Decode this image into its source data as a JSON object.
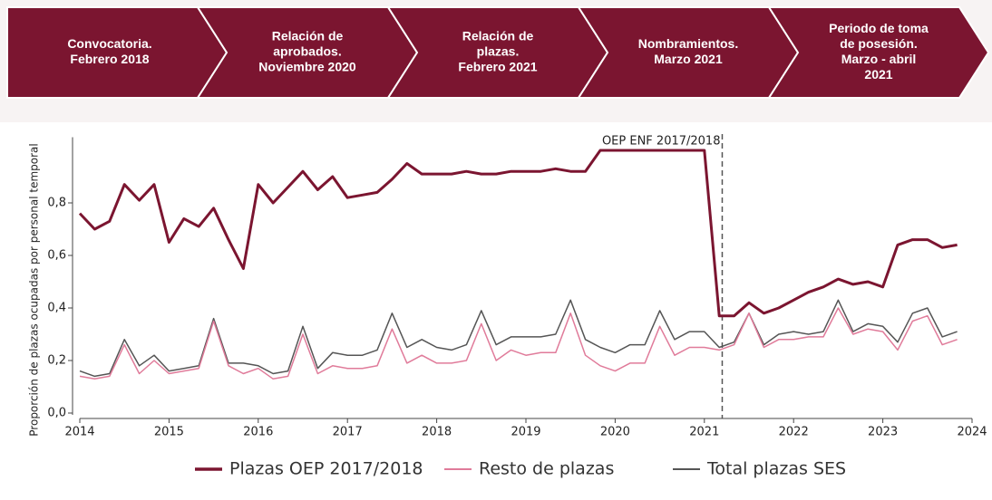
{
  "banner": {
    "steps": [
      [
        "Convocatoria.",
        "Febrero 2018"
      ],
      [
        "Relación de",
        "aprobados.",
        "Noviembre 2020"
      ],
      [
        "Relación de",
        "plazas.",
        "Febrero 2021"
      ],
      [
        "Nombramientos.",
        "Marzo 2021"
      ],
      [
        "Periodo de toma",
        "de posesión.",
        "Marzo - abril",
        "2021"
      ]
    ]
  },
  "chart_data": {
    "type": "line",
    "y_label": "Proporción de plazas ocupadas por personal temporal",
    "annotation": {
      "x": 2021.2,
      "text": "OEP ENF 2017/2018"
    },
    "x": [
      2014,
      2014.167,
      2014.333,
      2014.5,
      2014.667,
      2014.833,
      2015,
      2015.167,
      2015.333,
      2015.5,
      2015.667,
      2015.833,
      2016,
      2016.167,
      2016.333,
      2016.5,
      2016.667,
      2016.833,
      2017,
      2017.167,
      2017.333,
      2017.5,
      2017.667,
      2017.833,
      2018,
      2018.167,
      2018.333,
      2018.5,
      2018.667,
      2018.833,
      2019,
      2019.167,
      2019.333,
      2019.5,
      2019.667,
      2019.833,
      2020,
      2020.167,
      2020.333,
      2020.5,
      2020.667,
      2020.833,
      2021,
      2021.167,
      2021.333,
      2021.5,
      2021.667,
      2021.833,
      2022,
      2022.167,
      2022.333,
      2022.5,
      2022.667,
      2022.833,
      2023,
      2023.167,
      2023.333,
      2023.5,
      2023.667,
      2023.833
    ],
    "series": [
      {
        "name": "Plazas OEP 2017/2018",
        "color": "#7b1530",
        "width": 3,
        "values": [
          0.76,
          0.7,
          0.73,
          0.87,
          0.81,
          0.87,
          0.65,
          0.74,
          0.71,
          0.78,
          0.66,
          0.55,
          0.87,
          0.8,
          0.86,
          0.92,
          0.85,
          0.9,
          0.82,
          0.83,
          0.84,
          0.89,
          0.95,
          0.91,
          0.91,
          0.91,
          0.92,
          0.91,
          0.91,
          0.92,
          0.92,
          0.92,
          0.93,
          0.92,
          0.92,
          1.0,
          1.0,
          1.0,
          1.0,
          1.0,
          1.0,
          1.0,
          1.0,
          0.37,
          0.37,
          0.42,
          0.38,
          0.4,
          0.43,
          0.46,
          0.48,
          0.51,
          0.49,
          0.5,
          0.48,
          0.64,
          0.66,
          0.66,
          0.63,
          0.64
        ]
      },
      {
        "name": "Resto de plazas",
        "color": "#e07b9a",
        "width": 1.5,
        "values": [
          0.14,
          0.13,
          0.14,
          0.26,
          0.15,
          0.2,
          0.15,
          0.16,
          0.17,
          0.35,
          0.18,
          0.15,
          0.17,
          0.13,
          0.14,
          0.3,
          0.15,
          0.18,
          0.17,
          0.17,
          0.18,
          0.32,
          0.19,
          0.22,
          0.19,
          0.19,
          0.2,
          0.34,
          0.2,
          0.24,
          0.22,
          0.23,
          0.23,
          0.38,
          0.22,
          0.18,
          0.16,
          0.19,
          0.19,
          0.33,
          0.22,
          0.25,
          0.25,
          0.24,
          0.26,
          0.38,
          0.25,
          0.28,
          0.28,
          0.29,
          0.29,
          0.4,
          0.3,
          0.32,
          0.31,
          0.24,
          0.35,
          0.37,
          0.26,
          0.28
        ]
      },
      {
        "name": "Total plazas SES",
        "color": "#555555",
        "width": 1.5,
        "values": [
          0.16,
          0.14,
          0.15,
          0.28,
          0.18,
          0.22,
          0.16,
          0.17,
          0.18,
          0.36,
          0.19,
          0.19,
          0.18,
          0.15,
          0.16,
          0.33,
          0.17,
          0.23,
          0.22,
          0.22,
          0.24,
          0.38,
          0.25,
          0.28,
          0.25,
          0.24,
          0.26,
          0.39,
          0.26,
          0.29,
          0.29,
          0.29,
          0.3,
          0.43,
          0.28,
          0.25,
          0.23,
          0.26,
          0.26,
          0.39,
          0.28,
          0.31,
          0.31,
          0.25,
          0.27,
          0.38,
          0.26,
          0.3,
          0.31,
          0.3,
          0.31,
          0.43,
          0.31,
          0.34,
          0.33,
          0.27,
          0.38,
          0.4,
          0.29,
          0.31
        ]
      }
    ],
    "xlim": [
      2014,
      2024
    ],
    "xticks": [
      2014,
      2015,
      2016,
      2017,
      2018,
      2019,
      2020,
      2021,
      2022,
      2023,
      2024
    ],
    "ylim": [
      0,
      1.05
    ],
    "yticks": [
      {
        "value": 0,
        "label": "0,0"
      },
      {
        "value": 0.2,
        "label": "0,2"
      },
      {
        "value": 0.4,
        "label": "0,4"
      },
      {
        "value": 0.6,
        "label": "0,6"
      },
      {
        "value": 0.8,
        "label": "0,8"
      }
    ],
    "legend": "bottom"
  }
}
